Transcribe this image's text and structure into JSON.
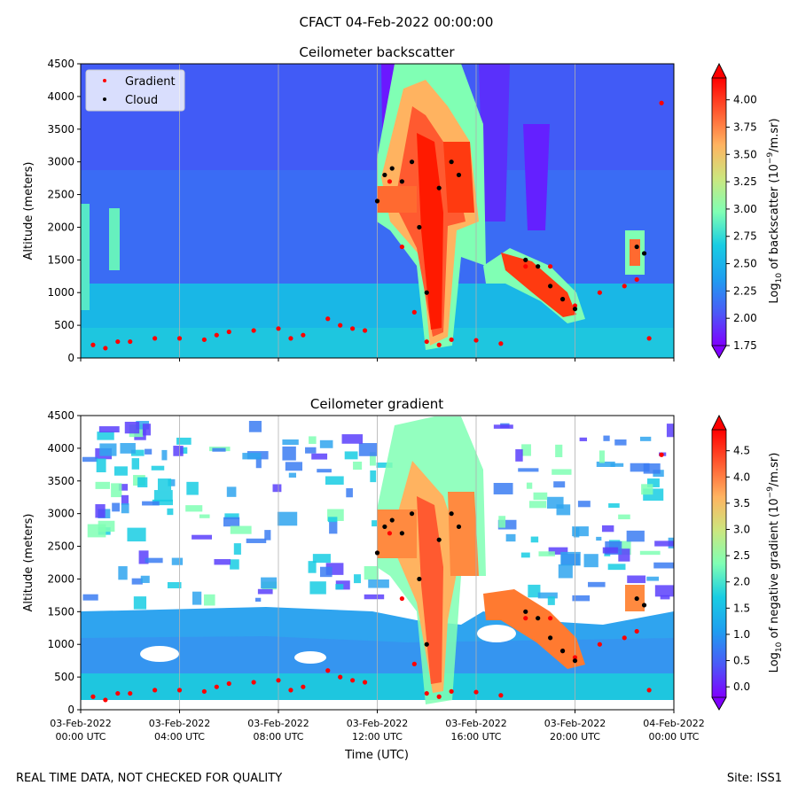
{
  "figure": {
    "suptitle": "CFACT 04-Feb-2022 00:00:00",
    "footer_left": "REAL TIME DATA, NOT CHECKED FOR QUALITY",
    "footer_right": "Site: ISS1",
    "xlabel": "Time (UTC)"
  },
  "chart_data": [
    {
      "type": "heatmap",
      "title": "Ceilometer backscatter",
      "ylabel": "Altitude (meters)",
      "ylim": [
        0,
        4500
      ],
      "y_ticks": [
        "0",
        "500",
        "1000",
        "1500",
        "2000",
        "2500",
        "3000",
        "3500",
        "4000",
        "4500"
      ],
      "x_ticks": [],
      "x_range_hours": [
        0,
        24
      ],
      "colorbar": {
        "label_prefix": "Log",
        "label_sub": "10",
        "label_rest": " of backscatter (10",
        "label_exp": "−9",
        "label_end": "/m.sr)",
        "range": [
          1.75,
          4.2
        ],
        "ticks": [
          "1.75",
          "2.00",
          "2.25",
          "2.50",
          "2.75",
          "3.00",
          "3.25",
          "3.50",
          "3.75",
          "4.00"
        ],
        "tick_values": [
          1.75,
          2.0,
          2.25,
          2.5,
          2.75,
          3.0,
          3.25,
          3.5,
          3.75,
          4.0
        ]
      },
      "legend": {
        "placement": "upper-left",
        "entries": [
          {
            "name": "Gradient",
            "color": "#ff0000"
          },
          {
            "name": "Cloud",
            "color": "#000000"
          }
        ]
      },
      "series": [
        {
          "name": "Gradient",
          "color": "#ff0000",
          "x": [
            0.5,
            1.0,
            1.5,
            2.0,
            3.0,
            4.0,
            5.0,
            5.5,
            6.0,
            7.0,
            8.0,
            8.5,
            9.0,
            10.0,
            10.5,
            11.0,
            11.5,
            12.0,
            12.5,
            13.0,
            13.5,
            14.0,
            14.5,
            15.0,
            16.0,
            17.0,
            18.0,
            19.0,
            19.5,
            20.0,
            21.0,
            22.0,
            22.5,
            23.0,
            23.5
          ],
          "y": [
            200,
            150,
            250,
            250,
            300,
            300,
            280,
            350,
            400,
            420,
            450,
            300,
            350,
            600,
            500,
            450,
            420,
            2400,
            2700,
            1700,
            700,
            250,
            200,
            280,
            270,
            220,
            1400,
            1400,
            900,
            800,
            1000,
            1100,
            1200,
            300,
            3900
          ]
        },
        {
          "name": "Cloud",
          "color": "#000000",
          "x": [
            12.0,
            12.3,
            12.6,
            13.0,
            13.4,
            13.7,
            14.0,
            14.5,
            15.0,
            15.3,
            18.0,
            18.5,
            19.0,
            19.5,
            20.0,
            22.5,
            22.8
          ],
          "y": [
            2400,
            2800,
            2900,
            2700,
            3000,
            2000,
            1000,
            2600,
            3000,
            2800,
            1500,
            1400,
            1100,
            900,
            750,
            1700,
            1600
          ]
        }
      ]
    },
    {
      "type": "heatmap",
      "title": "Ceilometer gradient",
      "ylabel": "Altitude (meters)",
      "ylim": [
        0,
        4500
      ],
      "y_ticks": [
        "0",
        "500",
        "1000",
        "1500",
        "2000",
        "2500",
        "3000",
        "3500",
        "4000",
        "4500"
      ],
      "x_ticks": [
        {
          "l1": "03-Feb-2022",
          "l2": "00:00 UTC",
          "x": 0
        },
        {
          "l1": "03-Feb-2022",
          "l2": "04:00 UTC",
          "x": 4
        },
        {
          "l1": "03-Feb-2022",
          "l2": "08:00 UTC",
          "x": 8
        },
        {
          "l1": "03-Feb-2022",
          "l2": "12:00 UTC",
          "x": 12
        },
        {
          "l1": "03-Feb-2022",
          "l2": "16:00 UTC",
          "x": 16
        },
        {
          "l1": "03-Feb-2022",
          "l2": "20:00 UTC",
          "x": 20
        },
        {
          "l1": "04-Feb-2022",
          "l2": "00:00 UTC",
          "x": 24
        }
      ],
      "x_range_hours": [
        0,
        24
      ],
      "colorbar": {
        "label_prefix": "Log",
        "label_sub": "10",
        "label_rest": " of negative gradient (10",
        "label_exp": "−9",
        "label_end": "/m.sr)",
        "range": [
          -0.2,
          4.9
        ],
        "ticks": [
          "0.0",
          "0.5",
          "1.0",
          "1.5",
          "2.0",
          "2.5",
          "3.0",
          "3.5",
          "4.0",
          "4.5"
        ],
        "tick_values": [
          0.0,
          0.5,
          1.0,
          1.5,
          2.0,
          2.5,
          3.0,
          3.5,
          4.0,
          4.5
        ]
      },
      "series": [
        {
          "name": "Gradient",
          "color": "#ff0000",
          "x": [
            0.5,
            1.0,
            1.5,
            2.0,
            3.0,
            4.0,
            5.0,
            5.5,
            6.0,
            7.0,
            8.0,
            8.5,
            9.0,
            10.0,
            10.5,
            11.0,
            11.5,
            12.0,
            12.5,
            13.0,
            13.5,
            14.0,
            14.5,
            15.0,
            16.0,
            17.0,
            18.0,
            19.0,
            19.5,
            20.0,
            21.0,
            22.0,
            22.5,
            23.0,
            23.5
          ],
          "y": [
            200,
            150,
            250,
            250,
            300,
            300,
            280,
            350,
            400,
            420,
            450,
            300,
            350,
            600,
            500,
            450,
            420,
            2400,
            2700,
            1700,
            700,
            250,
            200,
            280,
            270,
            220,
            1400,
            1400,
            900,
            800,
            1000,
            1100,
            1200,
            300,
            3900
          ]
        },
        {
          "name": "Cloud",
          "color": "#000000",
          "x": [
            12.0,
            12.3,
            12.6,
            13.0,
            13.4,
            13.7,
            14.0,
            14.5,
            15.0,
            15.3,
            18.0,
            18.5,
            19.0,
            19.5,
            20.0,
            22.5,
            22.8
          ],
          "y": [
            2400,
            2800,
            2900,
            2700,
            3000,
            2000,
            1000,
            2600,
            3000,
            2800,
            1500,
            1400,
            1100,
            900,
            750,
            1700,
            1600
          ]
        }
      ]
    }
  ]
}
